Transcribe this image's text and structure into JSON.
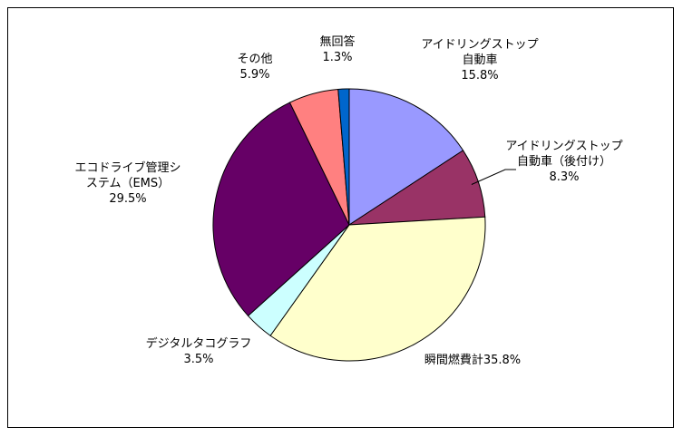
{
  "chart_data": {
    "type": "pie",
    "title": "",
    "start": "12 o'clock",
    "direction": "clockwise",
    "border_color": "#000000",
    "slices": [
      {
        "label": [
          "アイドリングストップ",
          "自動車",
          "15.8%"
        ],
        "value": 15.8,
        "color": "#9999FF"
      },
      {
        "label": [
          "アイドリングストップ",
          "自動車（後付け）",
          "8.3%"
        ],
        "value": 8.3,
        "color": "#993366"
      },
      {
        "label": [
          "瞬間燃費計35.8%"
        ],
        "value": 35.8,
        "color": "#FFFFCC"
      },
      {
        "label": [
          "デジタルタコグラフ",
          "3.5%"
        ],
        "value": 3.5,
        "color": "#CCFFFF"
      },
      {
        "label": [
          "エコドライブ管理シ",
          "ステム（EMS）",
          "29.5%"
        ],
        "value": 29.5,
        "color": "#660066"
      },
      {
        "label": [
          "その他",
          "5.9%"
        ],
        "value": 5.9,
        "color": "#FF8080"
      },
      {
        "label": [
          "無回答",
          "1.3%"
        ],
        "value": 1.3,
        "color": "#0066CC"
      }
    ]
  }
}
